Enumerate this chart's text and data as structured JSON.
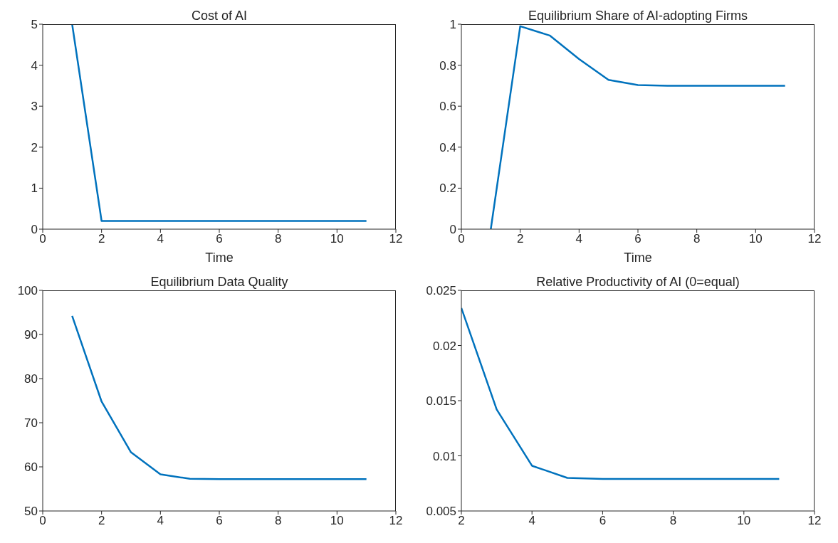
{
  "chart_data": [
    {
      "type": "line",
      "title": "Cost of AI",
      "xlabel": "Time",
      "x": [
        1,
        2,
        3,
        4,
        5,
        6,
        7,
        8,
        9,
        10,
        11
      ],
      "series": [
        {
          "color": "#0072bd",
          "values": [
            5,
            0.2,
            0.2,
            0.2,
            0.2,
            0.2,
            0.2,
            0.2,
            0.2,
            0.2,
            0.2
          ]
        }
      ],
      "xlim": [
        0,
        12
      ],
      "xticks": [
        0,
        2,
        4,
        6,
        8,
        10,
        12
      ],
      "ylim": [
        0,
        5
      ],
      "yticks": [
        0,
        1,
        2,
        3,
        4,
        5
      ],
      "grid": false,
      "legend": false,
      "marker": "none",
      "line_style": "solid"
    },
    {
      "type": "line",
      "title": "Equilibrium Share of AI-adopting Firms",
      "xlabel": "Time",
      "x": [
        1,
        2,
        3,
        4,
        5,
        6,
        7,
        8,
        9,
        10,
        11
      ],
      "series": [
        {
          "color": "#0072bd",
          "values": [
            0,
            0.99,
            0.945,
            0.83,
            0.728,
            0.703,
            0.7,
            0.7,
            0.7,
            0.7,
            0.7
          ]
        }
      ],
      "xlim": [
        0,
        12
      ],
      "xticks": [
        0,
        2,
        4,
        6,
        8,
        10,
        12
      ],
      "ylim": [
        0,
        1
      ],
      "yticks": [
        0,
        0.2,
        0.4,
        0.6,
        0.8,
        1
      ],
      "grid": false,
      "legend": false,
      "marker": "none",
      "line_style": "solid"
    },
    {
      "type": "line",
      "title": "Equilibrium Data Quality",
      "x": [
        1,
        2,
        3,
        4,
        5,
        6,
        7,
        8,
        9,
        10,
        11
      ],
      "series": [
        {
          "color": "#0072bd",
          "values": [
            94.2,
            74.8,
            63.3,
            58.3,
            57.3,
            57.2,
            57.2,
            57.2,
            57.2,
            57.2,
            57.2
          ]
        }
      ],
      "xlim": [
        0,
        12
      ],
      "xticks": [
        0,
        2,
        4,
        6,
        8,
        10,
        12
      ],
      "ylim": [
        50,
        100
      ],
      "yticks": [
        50,
        60,
        70,
        80,
        90,
        100
      ],
      "grid": false,
      "legend": false,
      "marker": "none",
      "line_style": "solid"
    },
    {
      "type": "line",
      "title": "Relative Productivity of AI (0=equal)",
      "x": [
        2,
        3,
        4,
        5,
        6,
        7,
        8,
        9,
        10,
        11
      ],
      "series": [
        {
          "color": "#0072bd",
          "values": [
            0.0234,
            0.0142,
            0.0091,
            0.008,
            0.0079,
            0.0079,
            0.0079,
            0.0079,
            0.0079,
            0.0079
          ]
        }
      ],
      "xlim": [
        2,
        12
      ],
      "xticks": [
        2,
        4,
        6,
        8,
        10,
        12
      ],
      "ylim": [
        0.005,
        0.025
      ],
      "yticks": [
        0.005,
        0.01,
        0.015,
        0.02,
        0.025
      ],
      "grid": false,
      "legend": false,
      "marker": "none",
      "line_style": "solid"
    }
  ]
}
